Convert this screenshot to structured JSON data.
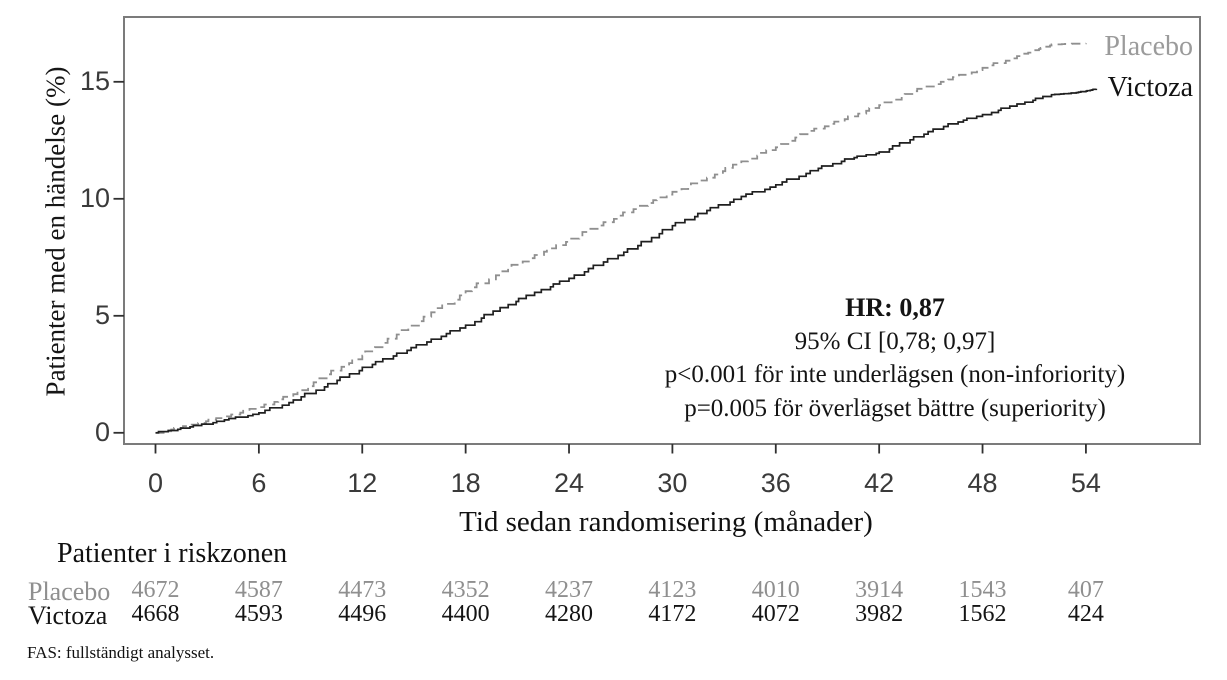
{
  "colors": {
    "background": "#ffffff",
    "plot_border": "#7b7b7b",
    "tick": "#303030",
    "placebo_line": "#8f8f8f",
    "placebo_text": "#9b9b9b",
    "victoza_line": "#1f1f1f",
    "victoza_text": "#121212"
  },
  "legend": {
    "placebo": "Placebo",
    "victoza": "Victoza"
  },
  "annotation": {
    "line1": "HR: 0,87",
    "line2": "95% CI [0,78; 0,97]",
    "line3": "p<0.001 för inte underlägsen (non-inforiority)",
    "line4": "p=0.005 för överlägset bättre (superiority)"
  },
  "risk_table": {
    "title": "Patienter i riskzonen",
    "time_points": [
      0,
      6,
      12,
      18,
      24,
      30,
      36,
      42,
      48,
      54
    ],
    "rows": [
      {
        "label": "Placebo",
        "values": [
          "4672",
          "4587",
          "4473",
          "4352",
          "4237",
          "4123",
          "4010",
          "3914",
          "1543",
          "407"
        ]
      },
      {
        "label": "Victoza",
        "values": [
          "4668",
          "4593",
          "4496",
          "4400",
          "4280",
          "4172",
          "4072",
          "3982",
          "1562",
          "424"
        ]
      }
    ]
  },
  "footnote": "FAS: fullständigt analysset.",
  "chart_data": {
    "type": "line",
    "subtype": "kaplan-meier-step",
    "title": "",
    "xlabel": "Tid sedan randomisering (månader)",
    "ylabel": "Patienter med en händelse (%)",
    "xlim": [
      0,
      60.5
    ],
    "ylim": [
      0,
      17.8
    ],
    "x_ticks": [
      0,
      6,
      12,
      18,
      24,
      30,
      36,
      42,
      48,
      54
    ],
    "y_ticks": [
      0,
      5,
      10,
      15
    ],
    "grid": false,
    "legend_position": "right-inside",
    "series": [
      {
        "name": "Placebo",
        "style": "dashed",
        "color": "#8f8f8f",
        "points": [
          [
            0,
            0
          ],
          [
            2,
            0.35
          ],
          [
            4,
            0.7
          ],
          [
            6,
            1.1
          ],
          [
            8,
            1.65
          ],
          [
            10,
            2.5
          ],
          [
            12,
            3.3
          ],
          [
            14,
            4.2
          ],
          [
            16,
            5.15
          ],
          [
            18,
            6.05
          ],
          [
            20,
            6.9
          ],
          [
            22,
            7.6
          ],
          [
            24,
            8.3
          ],
          [
            26,
            9.0
          ],
          [
            28,
            9.7
          ],
          [
            30,
            10.3
          ],
          [
            32,
            10.9
          ],
          [
            34,
            11.6
          ],
          [
            36,
            12.2
          ],
          [
            38,
            12.9
          ],
          [
            40,
            13.4
          ],
          [
            42,
            14.0
          ],
          [
            44,
            14.6
          ],
          [
            46,
            15.1
          ],
          [
            48,
            15.6
          ],
          [
            50,
            16.1
          ],
          [
            51,
            16.35
          ],
          [
            52,
            16.6
          ],
          [
            54,
            16.65
          ]
        ]
      },
      {
        "name": "Victoza",
        "style": "solid",
        "color": "#1f1f1f",
        "points": [
          [
            0,
            0
          ],
          [
            2,
            0.25
          ],
          [
            4,
            0.55
          ],
          [
            6,
            0.85
          ],
          [
            8,
            1.4
          ],
          [
            10,
            2.1
          ],
          [
            12,
            2.8
          ],
          [
            14,
            3.4
          ],
          [
            16,
            4.0
          ],
          [
            18,
            4.6
          ],
          [
            20,
            5.35
          ],
          [
            22,
            6.0
          ],
          [
            24,
            6.6
          ],
          [
            26,
            7.3
          ],
          [
            28,
            8.0
          ],
          [
            30,
            8.85
          ],
          [
            32,
            9.5
          ],
          [
            34,
            10.1
          ],
          [
            36,
            10.6
          ],
          [
            38,
            11.2
          ],
          [
            40,
            11.7
          ],
          [
            42,
            12.0
          ],
          [
            44,
            12.65
          ],
          [
            46,
            13.2
          ],
          [
            48,
            13.6
          ],
          [
            50,
            14.05
          ],
          [
            52,
            14.45
          ],
          [
            53,
            14.5
          ],
          [
            54,
            14.6
          ],
          [
            54.6,
            14.7
          ]
        ]
      }
    ]
  }
}
